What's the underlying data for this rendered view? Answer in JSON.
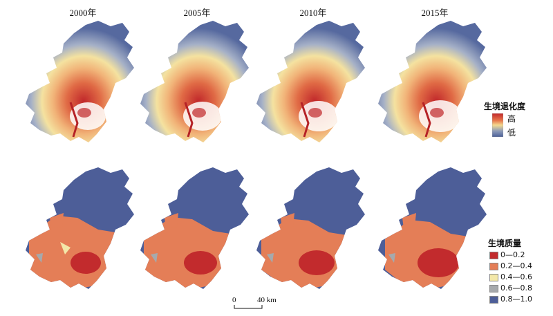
{
  "years": [
    "2000年",
    "2005年",
    "2010年",
    "2015年"
  ],
  "degradation_legend": {
    "title": "生境退化度",
    "high": "高",
    "low": "低",
    "gradient_colors": [
      "#c1282b",
      "#e8764a",
      "#f4d98e",
      "#8d9bb8",
      "#4a5f99"
    ]
  },
  "quality_legend": {
    "title": "生境质量",
    "classes": [
      {
        "label": "0—0.2",
        "color": "#c22b2d"
      },
      {
        "label": "0.2—0.4",
        "color": "#e47e57"
      },
      {
        "label": "0.4—0.6",
        "color": "#f3e8a9"
      },
      {
        "label": "0.6—0.8",
        "color": "#a6a9ac"
      },
      {
        "label": "0.8—1.0",
        "color": "#4d5e98"
      }
    ]
  },
  "scale_bar": {
    "zero": "0",
    "forty": "40 km"
  }
}
